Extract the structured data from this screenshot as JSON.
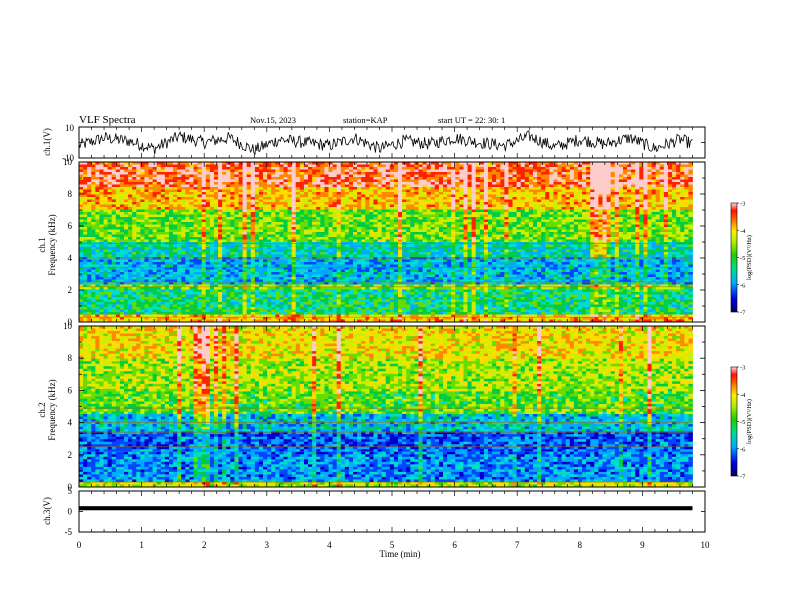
{
  "header": {
    "title": "VLF Spectra",
    "date": "Nov.15, 2023",
    "station": "station=KAP",
    "start_ut": "start  UT  =  22: 30: 1"
  },
  "colors": {
    "scale": [
      "#000066",
      "#0000cc",
      "#0044ff",
      "#00aaff",
      "#00ddcc",
      "#00cc44",
      "#66dd00",
      "#ccee00",
      "#ffdd00",
      "#ff8800",
      "#ff2200",
      "#ffcccc"
    ]
  },
  "chart_data": [
    {
      "id": "ch1-waveform",
      "type": "line",
      "ylabel": "ch.1(V)",
      "ylim": [
        -10,
        10
      ],
      "yticks": [
        "10",
        "-10"
      ],
      "xlim": [
        0,
        10
      ],
      "series": [
        {
          "x": [
            0.0,
            0.4,
            0.8,
            1.2,
            1.6,
            2.0,
            2.4,
            2.8,
            3.2,
            3.6,
            4.0,
            4.4,
            4.8,
            5.2,
            5.6,
            6.0,
            6.4,
            6.8,
            7.2,
            7.6,
            8.0,
            8.4,
            8.8,
            9.2,
            9.6,
            9.8
          ],
          "y": [
            -2,
            3,
            1,
            -4,
            4,
            0,
            3,
            -5,
            2,
            0,
            -2,
            3,
            -4,
            1,
            -1,
            3,
            0,
            -2,
            4,
            -3,
            2,
            -1,
            3,
            -4,
            2,
            -1
          ]
        }
      ]
    },
    {
      "id": "ch1-spectrogram",
      "type": "heatmap",
      "ylabel": "ch.1\nFrequency (kHz)",
      "ylim": [
        0,
        10
      ],
      "yticks": [
        "0",
        "2",
        "4",
        "6",
        "8",
        "10"
      ],
      "xlim": [
        0,
        10
      ],
      "data_xlim": [
        0,
        9.8
      ],
      "colorbar": {
        "label": "log(PSD)(V²/Hz)",
        "range": [
          -7,
          -3
        ],
        "ticks": [
          "-3",
          "-4",
          "-5",
          "-6",
          "-7"
        ]
      },
      "bands": [
        {
          "f": [
            0.0,
            0.5
          ],
          "level": -4.0
        },
        {
          "f": [
            0.5,
            2.0
          ],
          "level": -5.3
        },
        {
          "f": [
            2.0,
            2.3
          ],
          "level": -4.8
        },
        {
          "f": [
            2.3,
            4.0
          ],
          "level": -5.8
        },
        {
          "f": [
            4.0,
            5.0
          ],
          "level": -5.5
        },
        {
          "f": [
            5.0,
            7.0
          ],
          "level": -4.8
        },
        {
          "f": [
            7.0,
            8.5
          ],
          "level": -4.0
        },
        {
          "f": [
            8.5,
            10.0
          ],
          "level": -3.4
        }
      ]
    },
    {
      "id": "ch2-spectrogram",
      "type": "heatmap",
      "ylabel": "ch.2\nFrequency (kHz)",
      "ylim": [
        0,
        10
      ],
      "yticks": [
        "0",
        "2",
        "4",
        "6",
        "8",
        "10"
      ],
      "xlim": [
        0,
        10
      ],
      "data_xlim": [
        0,
        9.8
      ],
      "colorbar": {
        "label": "log(PSD)(V²/Hz)",
        "range": [
          -7,
          -3
        ],
        "ticks": [
          "-3",
          "-4",
          "-5",
          "-6",
          "-7"
        ]
      },
      "bands": [
        {
          "f": [
            0.0,
            0.3
          ],
          "level": -4.5
        },
        {
          "f": [
            0.3,
            2.0
          ],
          "level": -6.0
        },
        {
          "f": [
            2.0,
            3.5
          ],
          "level": -6.2
        },
        {
          "f": [
            3.5,
            4.5
          ],
          "level": -5.7
        },
        {
          "f": [
            4.5,
            6.0
          ],
          "level": -4.9
        },
        {
          "f": [
            6.0,
            8.0
          ],
          "level": -4.6
        },
        {
          "f": [
            8.0,
            10.0
          ],
          "level": -4.2
        }
      ]
    },
    {
      "id": "ch3-waveform",
      "type": "line",
      "ylabel": "ch.3(V)",
      "ylim": [
        -5,
        5
      ],
      "yticks": [
        "5",
        "0",
        "-5"
      ],
      "xlim": [
        0,
        10
      ],
      "xlabel": "Time (min)",
      "xticks": [
        "0",
        "1",
        "2",
        "3",
        "4",
        "5",
        "6",
        "7",
        "8",
        "9",
        "10"
      ],
      "series": [
        {
          "x": [
            0,
            9.8
          ],
          "y": [
            0.8,
            0.8
          ],
          "band": [
            0.3,
            1.3
          ]
        }
      ]
    }
  ]
}
